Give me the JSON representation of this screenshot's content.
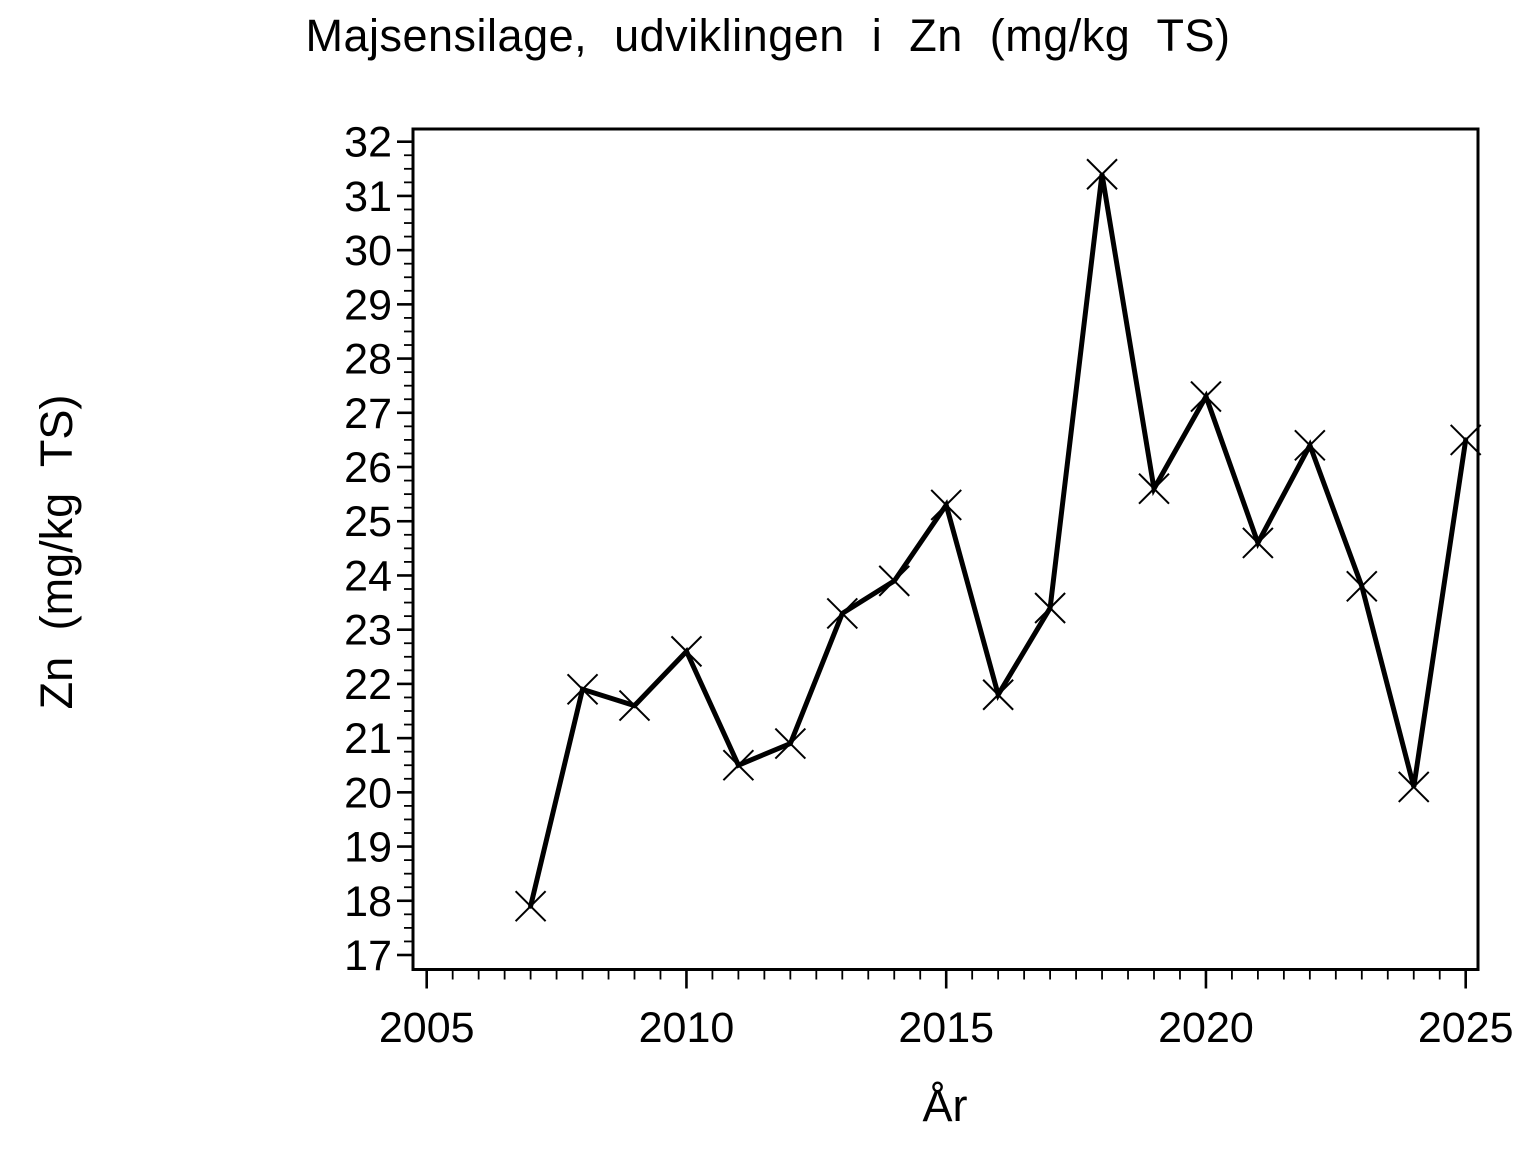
{
  "page": {
    "background_color": "#ffffff",
    "foreground_color": "#000000"
  },
  "chart_data": {
    "type": "line",
    "title": "Majsensilage, udviklingen i Zn (mg/kg TS)",
    "xlabel": "År",
    "ylabel": "Zn (mg/kg TS)",
    "x": [
      2007,
      2008,
      2009,
      2010,
      2011,
      2012,
      2013,
      2014,
      2015,
      2016,
      2017,
      2018,
      2019,
      2020,
      2021,
      2022,
      2023,
      2024,
      2025
    ],
    "values": [
      17.9,
      21.9,
      21.6,
      22.6,
      20.5,
      20.9,
      23.3,
      23.9,
      25.3,
      21.8,
      23.4,
      31.4,
      25.6,
      27.3,
      24.6,
      26.4,
      23.8,
      20.1,
      26.5
    ],
    "xlim": [
      2005,
      2025
    ],
    "ylim": [
      17,
      32
    ],
    "x_major_ticks": [
      2005,
      2010,
      2015,
      2020,
      2025
    ],
    "y_major_ticks": [
      17,
      18,
      19,
      20,
      21,
      22,
      23,
      24,
      25,
      26,
      27,
      28,
      29,
      30,
      31,
      32
    ],
    "x_minor_step": 0.5,
    "y_minor_step": 0.25,
    "marker": "x",
    "line_color": "#000000",
    "grid": false,
    "legend": false
  }
}
